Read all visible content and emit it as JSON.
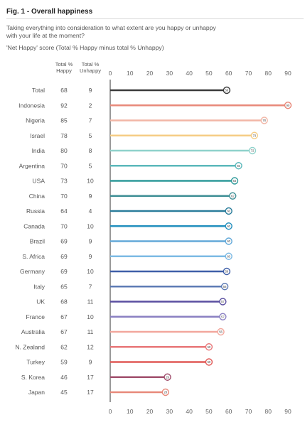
{
  "figure": {
    "title": "Fig. 1 - Overall happiness",
    "question": "Taking everything into consideration to what extent are you happy or unhappy with your life at the moment?",
    "subtitle": "'Net Happy' score (Total % Happy minus total % Unhappy)"
  },
  "chart_data": {
    "type": "bar",
    "orientation": "horizontal",
    "style": "lollipop",
    "column_headers": {
      "happy": [
        "Total %",
        "Happy"
      ],
      "unhappy": [
        "Total %",
        "Unhappy"
      ]
    },
    "categories": [
      "Total",
      "Indonesia",
      "Nigeria",
      "Israel",
      "India",
      "Argentina",
      "USA",
      "China",
      "Russia",
      "Canada",
      "Brazil",
      "S. Africa",
      "Germany",
      "Italy",
      "UK",
      "France",
      "Australia",
      "N. Zealand",
      "Turkey",
      "S. Korea",
      "Japan"
    ],
    "happy": [
      68,
      92,
      85,
      78,
      80,
      70,
      73,
      70,
      64,
      70,
      69,
      69,
      69,
      65,
      68,
      67,
      67,
      62,
      59,
      46,
      45
    ],
    "unhappy": [
      9,
      2,
      7,
      5,
      8,
      5,
      10,
      9,
      4,
      10,
      9,
      9,
      10,
      7,
      11,
      10,
      11,
      12,
      9,
      17,
      17
    ],
    "values": [
      59,
      90,
      78,
      73,
      72,
      65,
      63,
      62,
      60,
      60,
      60,
      60,
      59,
      58,
      57,
      57,
      56,
      50,
      50,
      29,
      28
    ],
    "colors": [
      "#3a3a3a",
      "#e8897a",
      "#f2b6a6",
      "#f5cc84",
      "#8fd2cb",
      "#5cb8bb",
      "#2e9a9a",
      "#3f8f96",
      "#2a7d9b",
      "#2490be",
      "#63a9d9",
      "#7cbae4",
      "#3f5fa8",
      "#5c7ab4",
      "#5a4fa0",
      "#8a80c2",
      "#f2a79d",
      "#e8787a",
      "#e05a57",
      "#a1506e",
      "#e8897a"
    ],
    "xlim": [
      0,
      90
    ],
    "xticks": [
      0,
      10,
      20,
      30,
      40,
      50,
      60,
      70,
      80,
      90
    ],
    "grid": false
  }
}
